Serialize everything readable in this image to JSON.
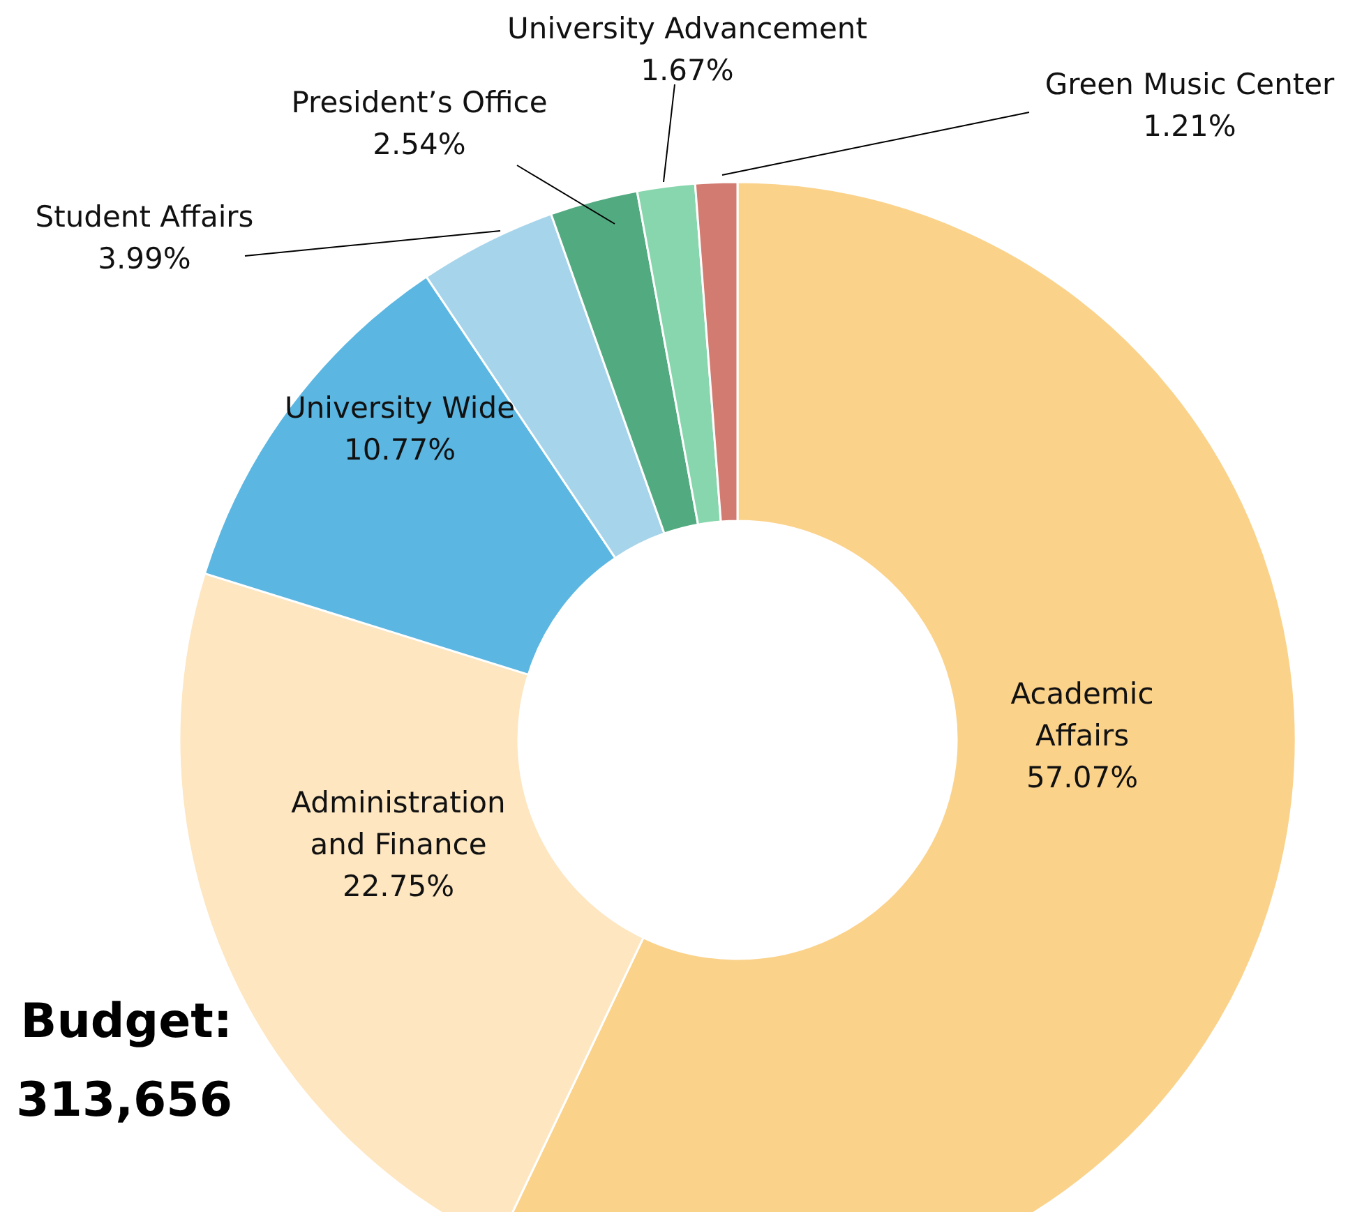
{
  "chart_data": {
    "type": "donut",
    "categories": [
      "Academic Affairs",
      "Administration and Finance",
      "University Wide",
      "Student Affairs",
      "President’s Office",
      "University Advancement",
      "Green Music Center"
    ],
    "values": [
      57.07,
      22.75,
      10.77,
      3.99,
      2.54,
      1.67,
      1.21
    ],
    "colors": [
      "#fbd28a",
      "#fde6c0",
      "#5bb6e1",
      "#a5d4eb",
      "#52aa80",
      "#88d6ad",
      "#d27b70"
    ],
    "value_labels": [
      "57.07%",
      "22.75%",
      "10.77%",
      "3.99%",
      "2.54%",
      "1.67%",
      "1.21%"
    ],
    "annotations": [
      "Budget:",
      "313,656"
    ]
  }
}
